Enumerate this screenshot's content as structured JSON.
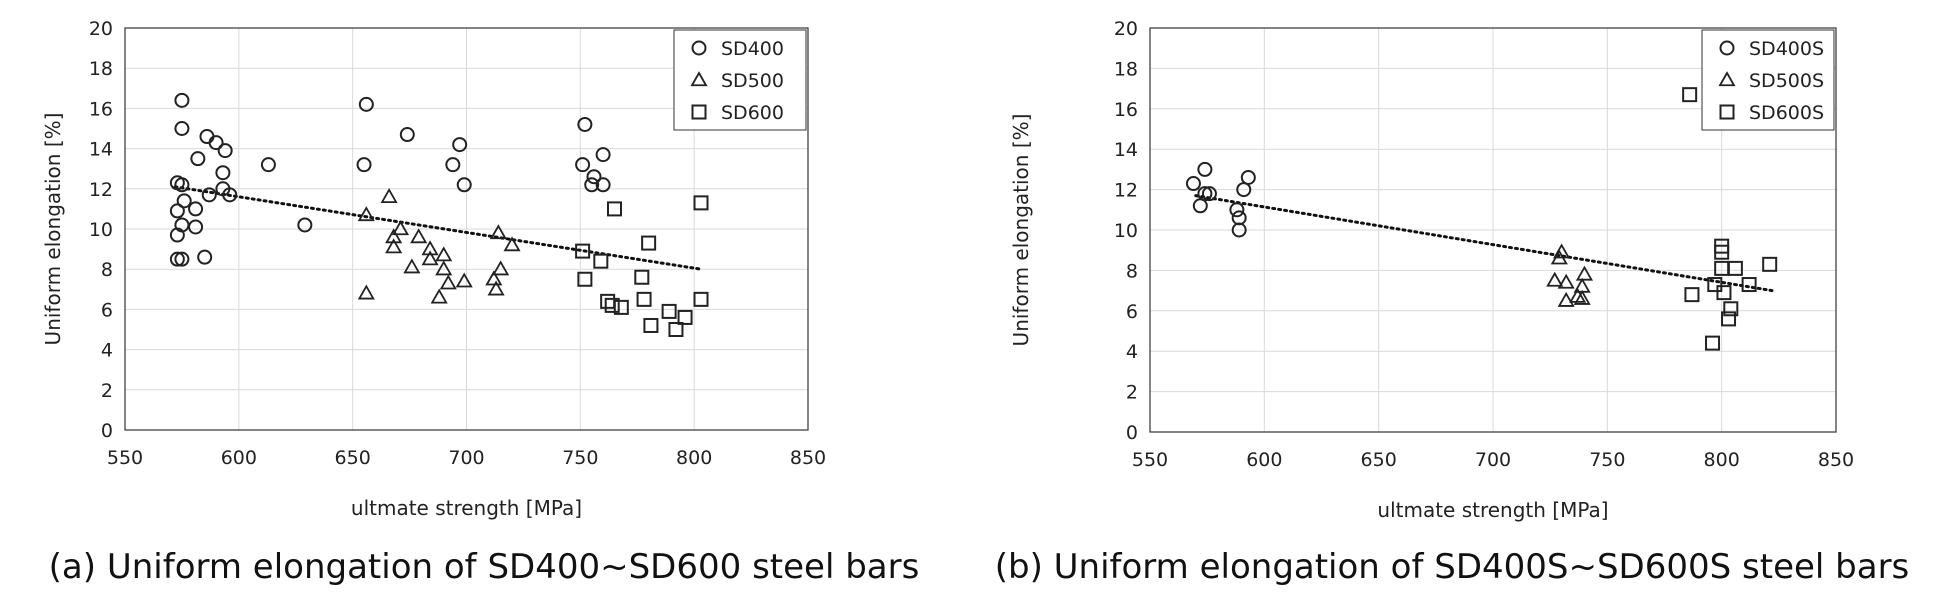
{
  "chart_data": [
    {
      "type": "scatter",
      "caption": "(a) Uniform elongation of SD400~SD600 steel bars",
      "xlabel": "ultmate strength [MPa]",
      "ylabel": "Uniform elongation [%]",
      "xlim": [
        550,
        850
      ],
      "ylim": [
        0,
        20
      ],
      "xticks": [
        "550",
        "600",
        "650",
        "700",
        "750",
        "800",
        "850"
      ],
      "yticks": [
        "0",
        "2",
        "4",
        "6",
        "8",
        "10",
        "12",
        "14",
        "16",
        "18",
        "20"
      ],
      "grid": true,
      "legend_position": "top-right",
      "trendline": {
        "style": "dotted",
        "x": [
          572,
          803
        ],
        "y": [
          12.1,
          8.0
        ]
      },
      "series": [
        {
          "name": "SD400",
          "marker": "circle",
          "points": [
            [
              575,
              16.4
            ],
            [
              575,
              15.0
            ],
            [
              586,
              14.6
            ],
            [
              590,
              14.3
            ],
            [
              594,
              13.9
            ],
            [
              582,
              13.5
            ],
            [
              613,
              13.2
            ],
            [
              593,
              12.8
            ],
            [
              573,
              12.3
            ],
            [
              575,
              12.2
            ],
            [
              593,
              12.0
            ],
            [
              587,
              11.7
            ],
            [
              596,
              11.7
            ],
            [
              576,
              11.4
            ],
            [
              581,
              11.0
            ],
            [
              573,
              10.9
            ],
            [
              575,
              10.2
            ],
            [
              581,
              10.1
            ],
            [
              573,
              9.7
            ],
            [
              585,
              8.6
            ],
            [
              573,
              8.5
            ],
            [
              575,
              8.5
            ],
            [
              629,
              10.2
            ],
            [
              656,
              16.2
            ],
            [
              655,
              13.2
            ],
            [
              674,
              14.7
            ],
            [
              697,
              14.2
            ],
            [
              694,
              13.2
            ],
            [
              699,
              12.2
            ],
            [
              752,
              15.2
            ],
            [
              751,
              13.2
            ],
            [
              760,
              13.7
            ],
            [
              756,
              12.6
            ],
            [
              755,
              12.2
            ],
            [
              760,
              12.2
            ]
          ]
        },
        {
          "name": "SD500",
          "marker": "triangle",
          "points": [
            [
              666,
              11.6
            ],
            [
              656,
              10.7
            ],
            [
              671,
              10.0
            ],
            [
              668,
              9.6
            ],
            [
              668,
              9.1
            ],
            [
              679,
              9.6
            ],
            [
              684,
              9.0
            ],
            [
              684,
              8.5
            ],
            [
              690,
              8.7
            ],
            [
              690,
              8.0
            ],
            [
              676,
              8.1
            ],
            [
              692,
              7.3
            ],
            [
              699,
              7.4
            ],
            [
              688,
              6.6
            ],
            [
              656,
              6.8
            ],
            [
              714,
              9.8
            ],
            [
              720,
              9.2
            ],
            [
              715,
              8.0
            ],
            [
              712,
              7.5
            ],
            [
              713,
              7.0
            ]
          ]
        },
        {
          "name": "SD600",
          "marker": "square",
          "points": [
            [
              751,
              8.9
            ],
            [
              752,
              7.5
            ],
            [
              759,
              8.4
            ],
            [
              765,
              11.0
            ],
            [
              762,
              6.4
            ],
            [
              764,
              6.2
            ],
            [
              768,
              6.1
            ],
            [
              777,
              7.6
            ],
            [
              780,
              9.3
            ],
            [
              778,
              6.5
            ],
            [
              781,
              5.2
            ],
            [
              789,
              5.9
            ],
            [
              792,
              5.0
            ],
            [
              796,
              5.6
            ],
            [
              803,
              11.3
            ],
            [
              803,
              6.5
            ]
          ]
        }
      ]
    },
    {
      "type": "scatter",
      "caption": "(b) Uniform elongation of SD400S~SD600S steel bars",
      "xlabel": "ultmate strength [MPa]",
      "ylabel": "Uniform elongation [%]",
      "xlim": [
        550,
        850
      ],
      "ylim": [
        0,
        20
      ],
      "xticks": [
        "550",
        "600",
        "650",
        "700",
        "750",
        "800",
        "850"
      ],
      "yticks": [
        "0",
        "2",
        "4",
        "6",
        "8",
        "10",
        "12",
        "14",
        "16",
        "18",
        "20"
      ],
      "grid": true,
      "legend_position": "top-right",
      "trendline": {
        "style": "dotted",
        "x": [
          570,
          822
        ],
        "y": [
          11.7,
          7.0
        ]
      },
      "series": [
        {
          "name": "SD400S",
          "marker": "circle",
          "points": [
            [
              574,
              13.0
            ],
            [
              569,
              12.3
            ],
            [
              593,
              12.6
            ],
            [
              591,
              12.0
            ],
            [
              574,
              11.8
            ],
            [
              576,
              11.8
            ],
            [
              572,
              11.2
            ],
            [
              588,
              11.0
            ],
            [
              589,
              10.6
            ],
            [
              589,
              10.0
            ]
          ]
        },
        {
          "name": "SD500S",
          "marker": "triangle",
          "points": [
            [
              730,
              8.9
            ],
            [
              729,
              8.6
            ],
            [
              727,
              7.5
            ],
            [
              732,
              7.4
            ],
            [
              740,
              7.8
            ],
            [
              739,
              7.2
            ],
            [
              737,
              6.7
            ],
            [
              739,
              6.6
            ],
            [
              732,
              6.5
            ]
          ]
        },
        {
          "name": "SD600S",
          "marker": "square",
          "points": [
            [
              786,
              16.7
            ],
            [
              800,
              9.2
            ],
            [
              800,
              8.9
            ],
            [
              800,
              8.1
            ],
            [
              806,
              8.1
            ],
            [
              821,
              8.3
            ],
            [
              797,
              7.3
            ],
            [
              812,
              7.3
            ],
            [
              787,
              6.8
            ],
            [
              801,
              6.9
            ],
            [
              804,
              6.1
            ],
            [
              803,
              5.6
            ],
            [
              796,
              4.4
            ]
          ]
        }
      ]
    }
  ]
}
